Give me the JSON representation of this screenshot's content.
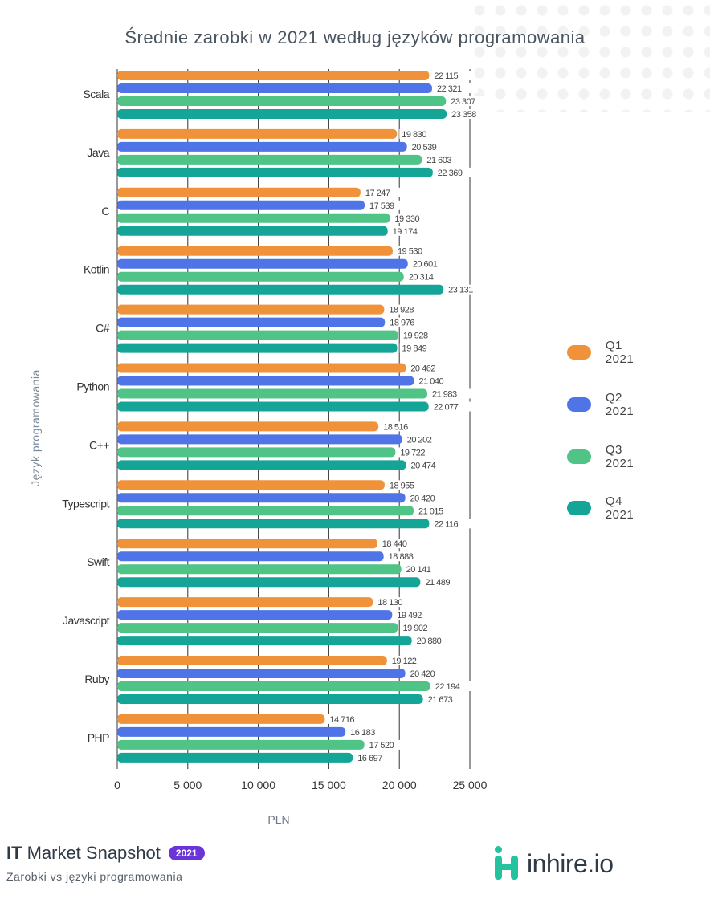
{
  "title": "Średnie zarobki w 2021 według języków programowania",
  "footer": {
    "title_bold": "IT",
    "title_rest": "Market Snapshot",
    "badge": "2021",
    "subtitle": "Zarobki vs języki programowania",
    "brand": "inhire.io"
  },
  "colors": {
    "q1": "#f0923a",
    "q2": "#4f74e8",
    "q3": "#4fc486",
    "q4": "#14a596",
    "grid": "#333333",
    "bar_text": "#444444"
  },
  "chart_data": {
    "type": "bar",
    "orientation": "horizontal",
    "title": "Średnie zarobki w 2021 według języków programowania",
    "xlabel": "PLN",
    "ylabel": "Język programowania",
    "xlim": [
      0,
      25000
    ],
    "xticks": [
      0,
      5000,
      10000,
      15000,
      20000,
      25000
    ],
    "xtick_labels": [
      "0",
      "5 000",
      "10 000",
      "15 000",
      "20 000",
      "25 000"
    ],
    "grid": "vertical",
    "legend_position": "right",
    "categories": [
      "Scala",
      "Java",
      "C",
      "Kotlin",
      "C#",
      "Python",
      "C++",
      "Typescript",
      "Swift",
      "Javascript",
      "Ruby",
      "PHP"
    ],
    "series": [
      {
        "name": "Q1 2021",
        "color": "#f0923a",
        "values": [
          22115,
          19830,
          17247,
          19530,
          18928,
          20462,
          18516,
          18955,
          18440,
          18130,
          19122,
          14716
        ],
        "labels": [
          "22 115",
          "19 830",
          "17 247",
          "19 530",
          "18 928",
          "20 462",
          "18 516",
          "18 955",
          "18 440",
          "18 130",
          "19 122",
          "14 716"
        ]
      },
      {
        "name": "Q2 2021",
        "color": "#4f74e8",
        "values": [
          22321,
          20539,
          17539,
          20601,
          18976,
          21040,
          20202,
          20420,
          18888,
          19492,
          20420,
          16183
        ],
        "labels": [
          "22 321",
          "20 539",
          "17 539",
          "20 601",
          "18 976",
          "21 040",
          "20 202",
          "20 420",
          "18 888",
          "19 492",
          "20 420",
          "16 183"
        ]
      },
      {
        "name": "Q3 2021",
        "color": "#4fc486",
        "values": [
          23307,
          21603,
          19330,
          20314,
          19928,
          21983,
          19722,
          21015,
          20141,
          19902,
          22194,
          17520
        ],
        "labels": [
          "23 307",
          "21 603",
          "19 330",
          "20 314",
          "19 928",
          "21 983",
          "19 722",
          "21 015",
          "20 141",
          "19 902",
          "22 194",
          "17 520"
        ]
      },
      {
        "name": "Q4 2021",
        "color": "#14a596",
        "values": [
          23358,
          22369,
          19174,
          23131,
          19849,
          22077,
          20474,
          22116,
          21489,
          20880,
          21673,
          16697
        ],
        "labels": [
          "23 358",
          "22 369",
          "19 174",
          "23 131",
          "19 849",
          "22 077",
          "20 474",
          "22 116",
          "21 489",
          "20 880",
          "21 673",
          "16 697"
        ]
      }
    ]
  }
}
